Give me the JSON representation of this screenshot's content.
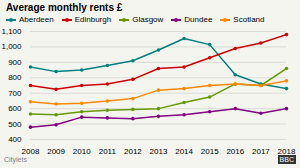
{
  "chart_data": {
    "type": "line",
    "title": "Average monthly rents £",
    "x": [
      2008,
      2009,
      2010,
      2011,
      2012,
      2013,
      2014,
      2015,
      2016,
      2017,
      2018
    ],
    "series": [
      {
        "name": "Aberdeen",
        "color": "#008080",
        "values": [
          870,
          840,
          850,
          880,
          910,
          980,
          1055,
          1015,
          820,
          760,
          730
        ]
      },
      {
        "name": "Edinburgh",
        "color": "#cc0000",
        "values": [
          750,
          725,
          750,
          760,
          790,
          860,
          870,
          930,
          990,
          1025,
          1080
        ]
      },
      {
        "name": "Glasgow",
        "color": "#669900",
        "values": [
          565,
          560,
          580,
          590,
          595,
          600,
          640,
          675,
          760,
          750,
          860
        ]
      },
      {
        "name": "Dundee",
        "color": "#800080",
        "values": [
          480,
          495,
          545,
          540,
          535,
          550,
          560,
          580,
          600,
          570,
          600
        ]
      },
      {
        "name": "Scotland",
        "color": "#ff8800",
        "values": [
          645,
          630,
          635,
          650,
          665,
          720,
          730,
          750,
          760,
          750,
          780
        ]
      }
    ],
    "xlim": [
      2008,
      2018
    ],
    "xticks": [
      2008,
      2009,
      2010,
      2011,
      2012,
      2013,
      2014,
      2015,
      2016,
      2017,
      2018
    ],
    "ylim": [
      400,
      1100
    ],
    "yticks": [
      400,
      500,
      600,
      700,
      800,
      900,
      {
        "value": 1000,
        "label": "1,000"
      },
      {
        "value": 1100,
        "label": "1,100"
      }
    ],
    "grid": true,
    "legend": "top",
    "marker": "circle",
    "annotations": [
      "Citylets",
      "BBC"
    ]
  }
}
